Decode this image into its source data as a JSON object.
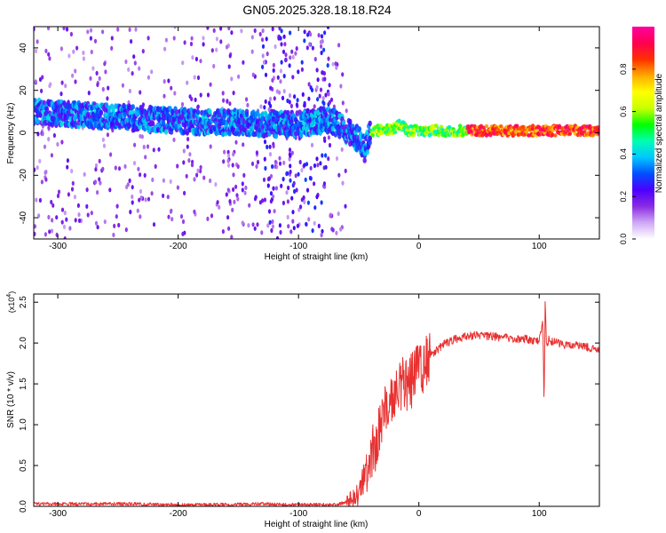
{
  "page_title": "GN05.2025.328.18.18.R24",
  "chart_data": [
    {
      "type": "heatmap",
      "xlabel": "Height of straight line (km)",
      "ylabel": "Frequency (Hz)",
      "xlim": [
        -320,
        150
      ],
      "ylim": [
        -50,
        50
      ],
      "xticks": [
        -300,
        -200,
        -100,
        0,
        100
      ],
      "yticks": [
        -40,
        -20,
        0,
        20,
        40
      ],
      "colorbar": {
        "label": "Normalized spectral amplitude",
        "range": [
          0,
          1
        ],
        "ticks": [
          0.0,
          0.2,
          0.4,
          0.6,
          0.8
        ],
        "tick_labels": [
          "0.0",
          "0.2",
          "0.4",
          "0.6",
          "0.8"
        ],
        "colormap": [
          "#ffffff",
          "#cfa8f5",
          "#8a2be2",
          "#4b00ff",
          "#0050ff",
          "#00c8ff",
          "#00ffb0",
          "#00ff00",
          "#c8ff00",
          "#ffff00",
          "#ffaa00",
          "#ff3000",
          "#ff0050",
          "#ff00a0"
        ]
      },
      "ridge": {
        "x": [
          -320,
          -300,
          -270,
          -240,
          -210,
          -180,
          -150,
          -130,
          -100,
          -80,
          -70,
          -60,
          -50,
          -45,
          -40,
          -30,
          -20,
          -15,
          -10,
          0,
          20,
          50,
          100,
          150
        ],
        "y": [
          10,
          9,
          8,
          7,
          6,
          5,
          5,
          4,
          4,
          6,
          5,
          1,
          -3,
          -8,
          1,
          1,
          2,
          4,
          1,
          1,
          1,
          1,
          1,
          1
        ]
      }
    },
    {
      "type": "line",
      "xlabel": "Height of straight line (km)",
      "ylabel": "SNR (10 * v/v)",
      "yscale_label": "(x10",
      "yscale_exp": "4",
      "yscale_close": ")",
      "xlim": [
        -320,
        150
      ],
      "ylim": [
        0,
        2.6
      ],
      "xticks": [
        -300,
        -200,
        -100,
        0,
        100
      ],
      "yticks": [
        0.0,
        0.5,
        1.0,
        1.5,
        2.0,
        2.5
      ],
      "ytick_labels": [
        "0.0",
        "0.5",
        "1.0",
        "1.5",
        "2.0",
        "2.5"
      ],
      "color": "#e83030",
      "series": [
        {
          "x": [
            -320,
            -280,
            -240,
            -200,
            -160,
            -130,
            -110,
            -90,
            -70,
            -60,
            -50,
            -45,
            -40,
            -35,
            -30,
            -25,
            -20,
            -15,
            -10,
            -5,
            0,
            5,
            10,
            20,
            30,
            40,
            50,
            60,
            70,
            80,
            90,
            100,
            103,
            104,
            105,
            106,
            108,
            110,
            120,
            130,
            140,
            150
          ],
          "values": [
            0.03,
            0.03,
            0.03,
            0.02,
            0.02,
            0.03,
            0.02,
            0.02,
            0.02,
            0.05,
            0.15,
            0.35,
            0.55,
            0.85,
            1.1,
            1.3,
            1.35,
            1.5,
            1.45,
            1.55,
            1.65,
            1.75,
            1.85,
            1.98,
            2.05,
            2.08,
            2.1,
            2.08,
            2.07,
            2.05,
            2.05,
            2.02,
            2.3,
            1.2,
            2.6,
            1.95,
            2.05,
            2.02,
            1.98,
            1.98,
            1.95,
            1.9
          ]
        }
      ]
    }
  ]
}
